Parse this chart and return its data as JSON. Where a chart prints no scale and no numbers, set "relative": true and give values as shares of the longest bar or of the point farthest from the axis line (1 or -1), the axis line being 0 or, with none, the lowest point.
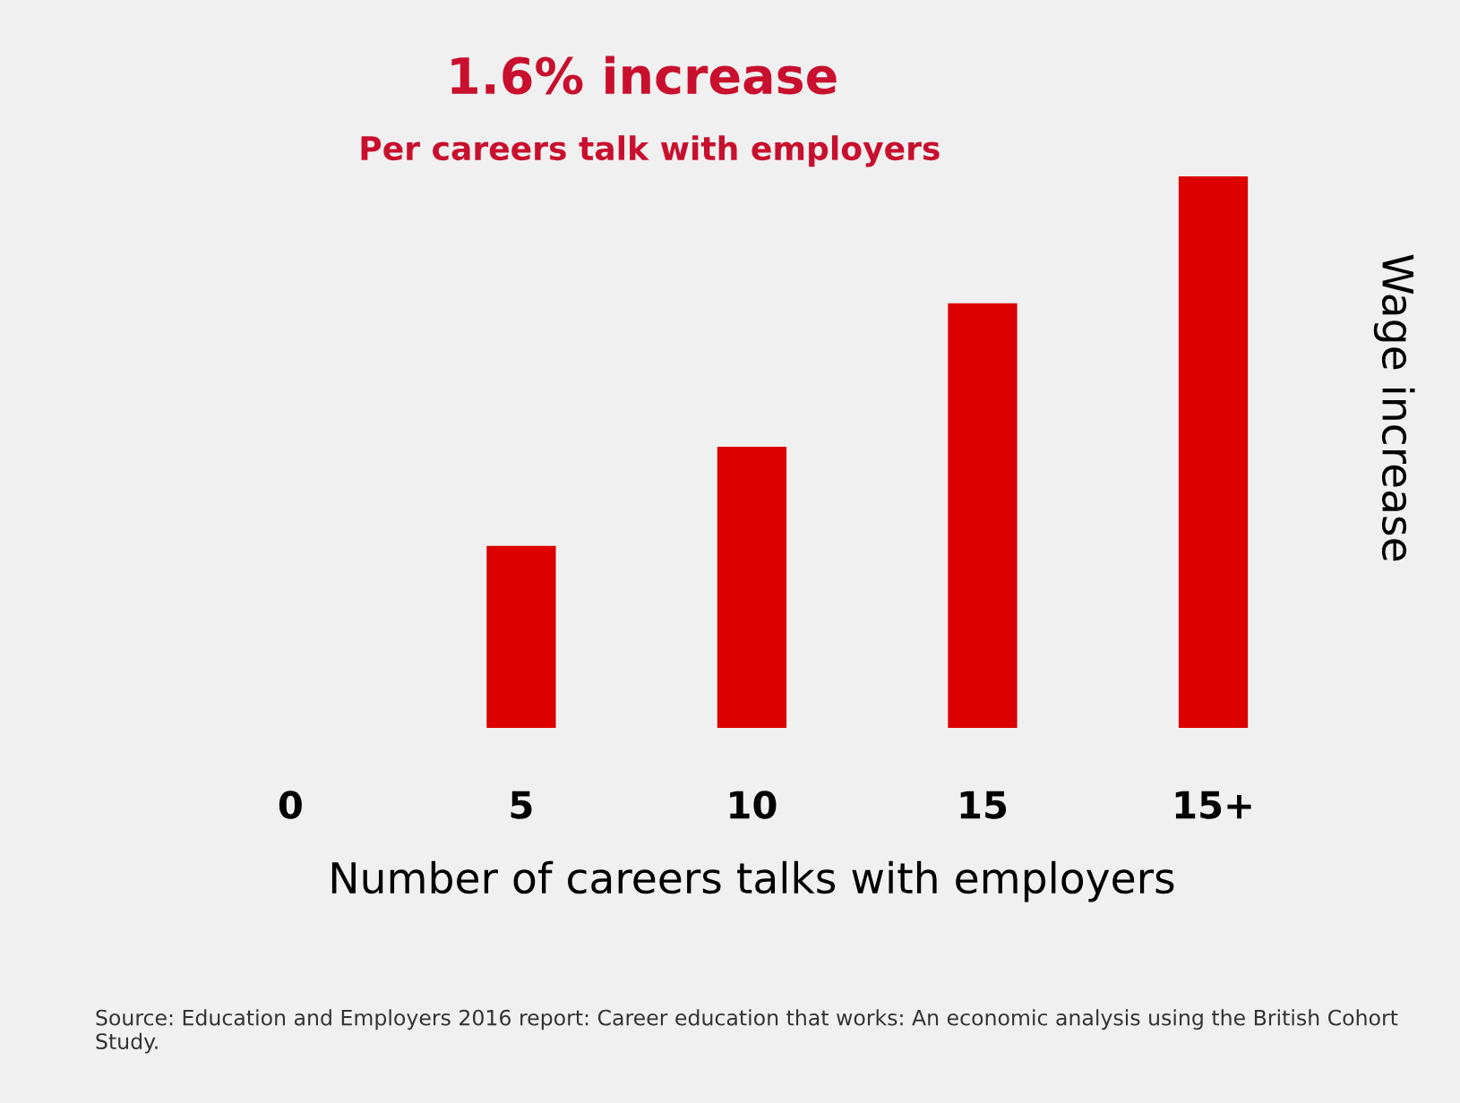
{
  "chart_data": {
    "type": "bar",
    "relative": true,
    "title": "1.6% increase",
    "subtitle": "Per careers talk with employers",
    "xlabel": "Number of careers talks with employers",
    "y2label": "Wage increase",
    "categories": [
      "0",
      "5",
      "10",
      "15",
      "15+"
    ],
    "values": [
      0,
      0.33,
      0.51,
      0.77,
      1
    ],
    "color": "#dc0000",
    "annotations": [
      "Source: Education and Employers 2016 report: Career education that works: An economic analysis using the British Cohort Study."
    ]
  }
}
